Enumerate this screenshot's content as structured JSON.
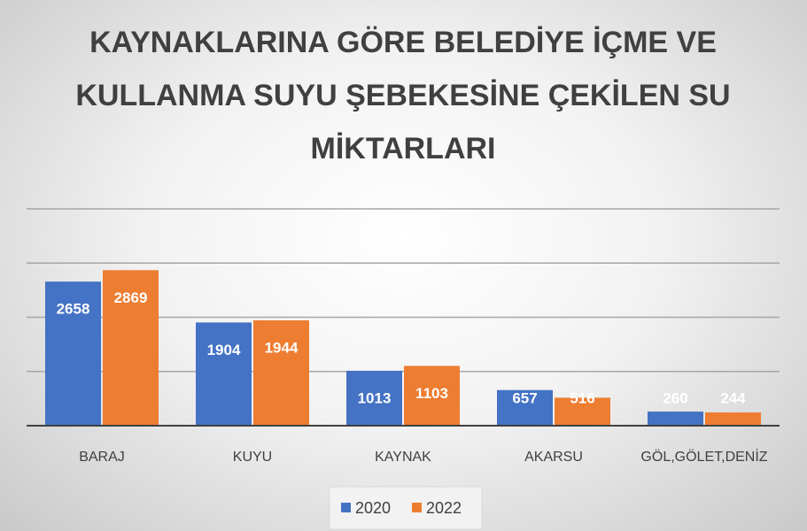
{
  "chart_data": {
    "type": "bar",
    "title": "KAYNAKLARINA GÖRE BELEDİYE İÇME VE KULLANMA SUYU ŞEBEKESİNE ÇEKİLEN SU MİKTARLARI",
    "categories": [
      "BARAJ",
      "KUYU",
      "KAYNAK",
      "AKARSU",
      "GÖL,GÖLET,DENİZ"
    ],
    "series": [
      {
        "name": "2020",
        "color": "#4472c4",
        "values": [
          2658,
          1904,
          1013,
          657,
          260
        ]
      },
      {
        "name": "2022",
        "color": "#ed7d31",
        "values": [
          2869,
          1944,
          1103,
          516,
          244
        ]
      }
    ],
    "ylim": [
      0,
      4000
    ],
    "yticks": [
      0,
      1000,
      2000,
      3000,
      4000
    ],
    "grid": true,
    "legend": "bottom"
  }
}
